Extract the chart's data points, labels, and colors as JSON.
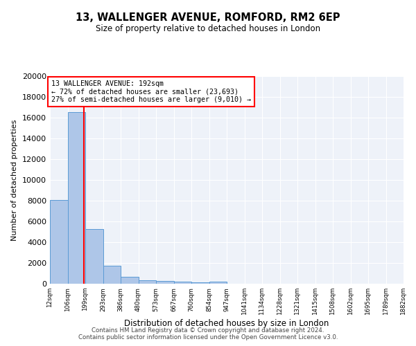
{
  "title1": "13, WALLENGER AVENUE, ROMFORD, RM2 6EP",
  "title2": "Size of property relative to detached houses in London",
  "xlabel": "Distribution of detached houses by size in London",
  "ylabel": "Number of detached properties",
  "bin_labels": [
    "12sqm",
    "106sqm",
    "199sqm",
    "293sqm",
    "386sqm",
    "480sqm",
    "573sqm",
    "667sqm",
    "760sqm",
    "854sqm",
    "947sqm",
    "1041sqm",
    "1134sqm",
    "1228sqm",
    "1321sqm",
    "1415sqm",
    "1508sqm",
    "1602sqm",
    "1695sqm",
    "1789sqm",
    "1882sqm"
  ],
  "bar_heights": [
    8100,
    16500,
    5300,
    1750,
    700,
    350,
    270,
    200,
    160,
    200,
    0,
    0,
    0,
    0,
    0,
    0,
    0,
    0,
    0,
    0
  ],
  "bar_color": "#aec6e8",
  "bar_edge_color": "#5b9bd5",
  "property_line_label": "13 WALLENGER AVENUE: 192sqm",
  "annotation_line1": "← 72% of detached houses are smaller (23,693)",
  "annotation_line2": "27% of semi-detached houses are larger (9,010) →",
  "ylim": [
    0,
    20000
  ],
  "yticks": [
    0,
    2000,
    4000,
    6000,
    8000,
    10000,
    12000,
    14000,
    16000,
    18000,
    20000
  ],
  "footer1": "Contains HM Land Registry data © Crown copyright and database right 2024.",
  "footer2": "Contains public sector information licensed under the Open Government Licence v3.0.",
  "background_color": "#eef2f9"
}
